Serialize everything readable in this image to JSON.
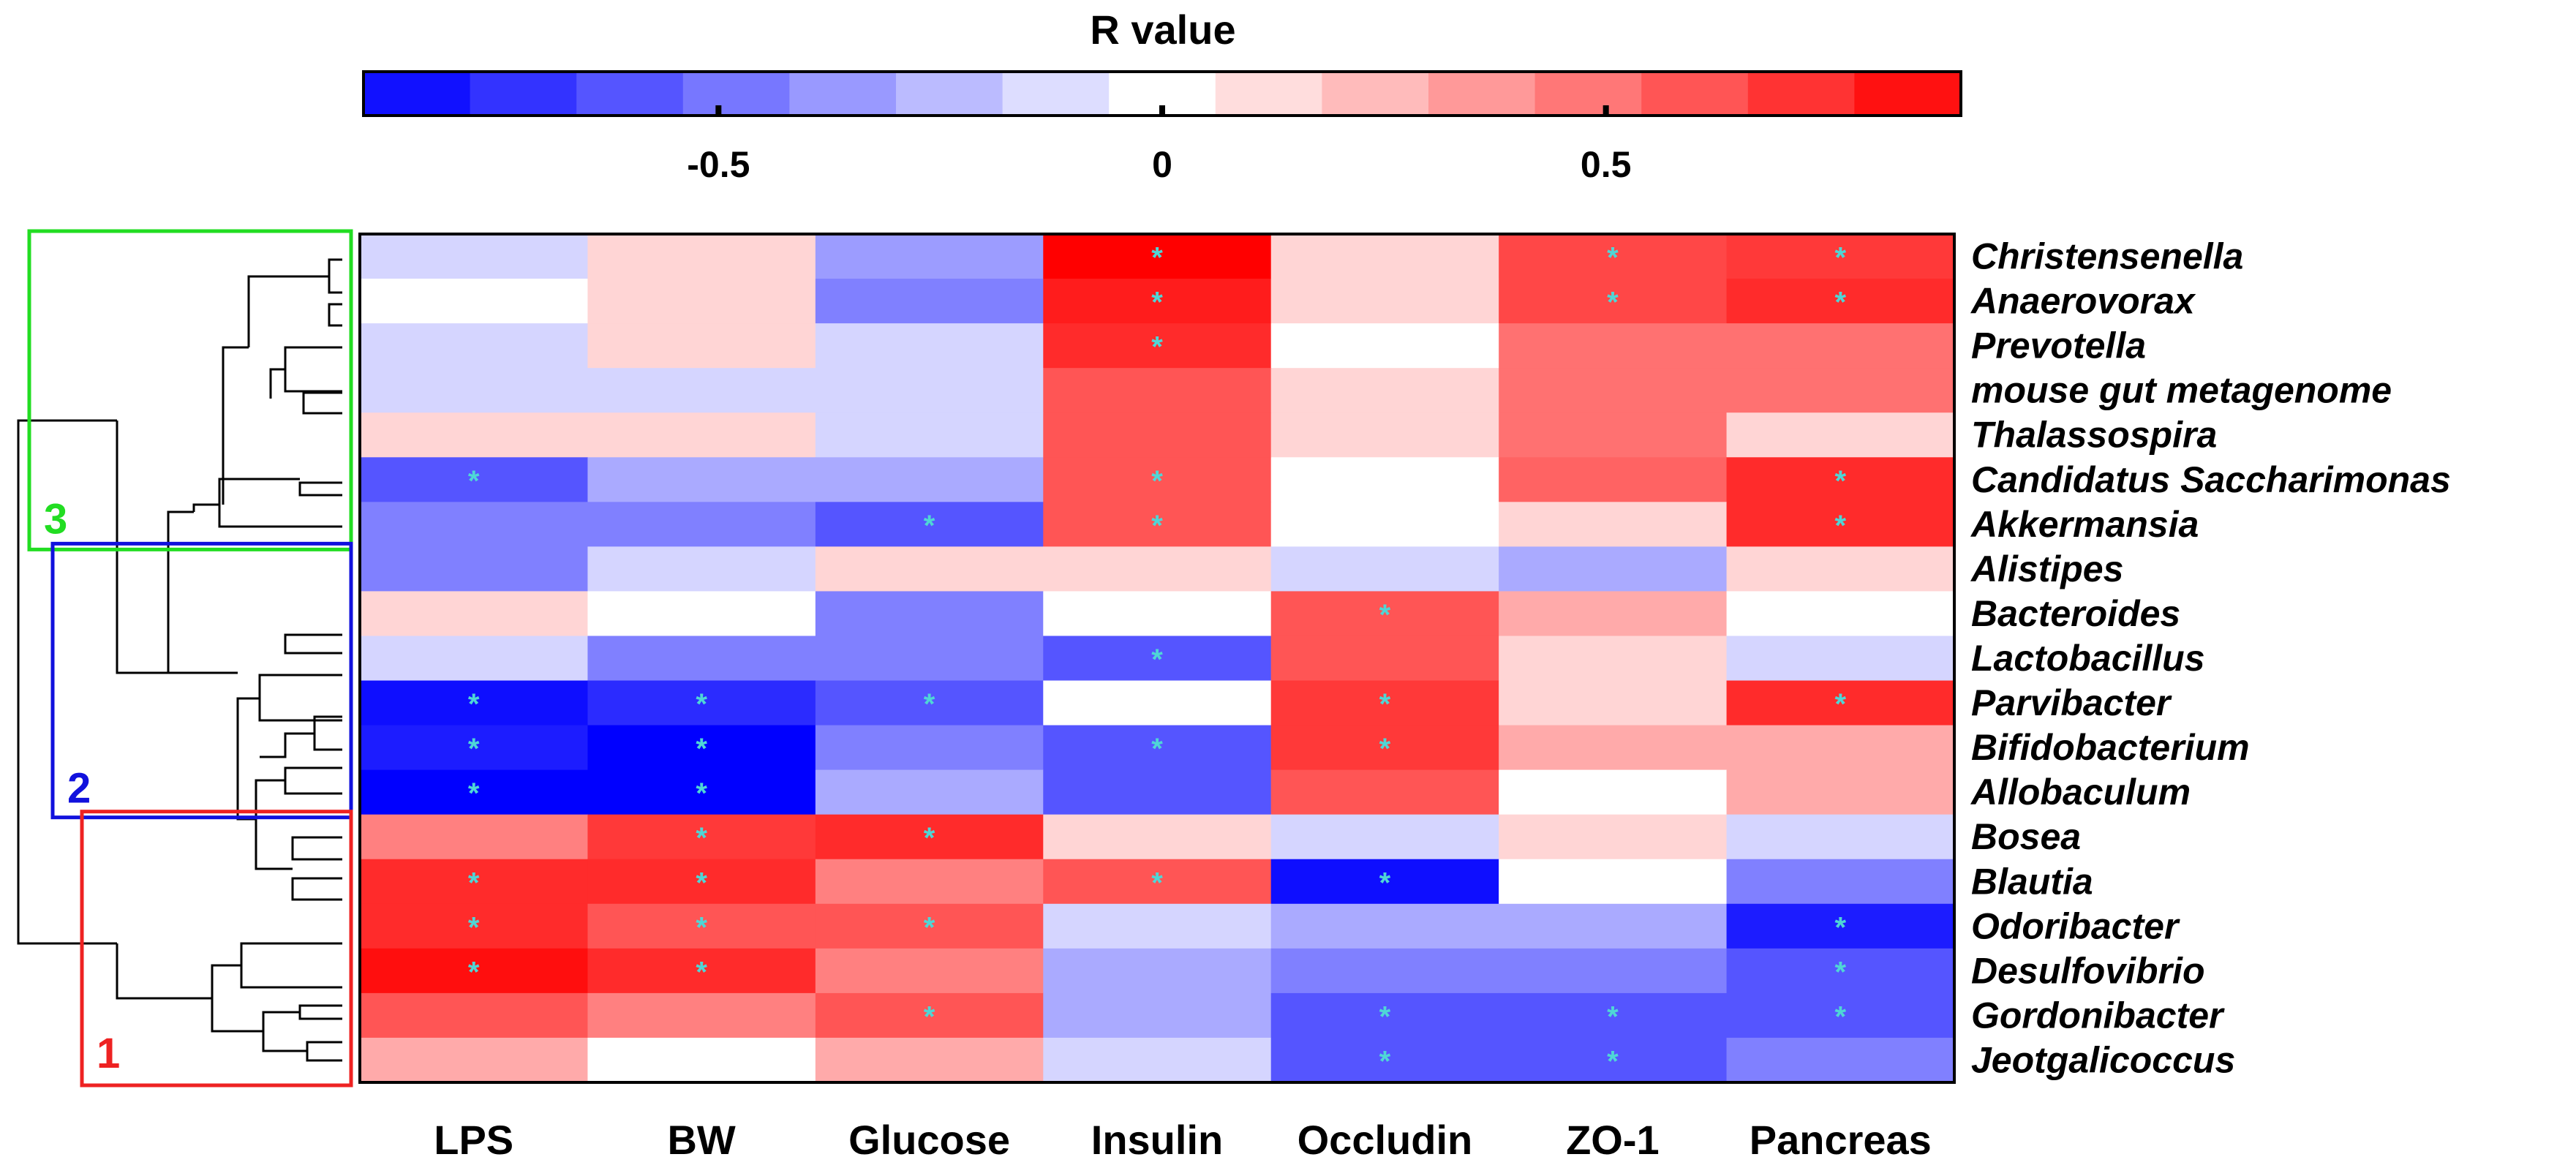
{
  "chart_data": {
    "type": "heatmap",
    "colorbar": {
      "title": "R value",
      "ticks": [
        {
          "value": -0.5,
          "label": "-0.5"
        },
        {
          "value": 0,
          "label": "0"
        },
        {
          "value": 0.5,
          "label": "0.5"
        }
      ],
      "range": [
        -0.9,
        0.9
      ],
      "colors": {
        "low": "#0000ff",
        "mid": "#ffffff",
        "high": "#ff0000"
      }
    },
    "columns": [
      "LPS",
      "BW",
      "Glucose",
      "Insulin",
      "Occludin",
      "ZO-1",
      "Pancreas"
    ],
    "rows": [
      "Christensenella",
      "Anaerovorax",
      "Prevotella",
      "mouse gut metagenome",
      "Thalassospira",
      "Candidatus Saccharimonas",
      "Akkermansia",
      "Alistipes",
      "Bacteroides",
      "Lactobacillus",
      "Parvibacter",
      "Bifidobacterium",
      "Allobaculum",
      "Bosea",
      "Blautia",
      "Odoribacter",
      "Desulfovibrio",
      "Gordonibacter",
      "Jeotgalicoccus"
    ],
    "values": [
      [
        -0.15,
        0.15,
        -0.35,
        0.9,
        0.15,
        0.65,
        0.7
      ],
      [
        0.0,
        0.15,
        -0.45,
        0.8,
        0.15,
        0.65,
        0.75
      ],
      [
        -0.15,
        0.15,
        -0.15,
        0.75,
        0.0,
        0.5,
        0.5
      ],
      [
        -0.15,
        -0.15,
        -0.15,
        0.6,
        0.15,
        0.5,
        0.5
      ],
      [
        0.15,
        0.15,
        -0.15,
        0.6,
        0.15,
        0.5,
        0.15
      ],
      [
        -0.6,
        -0.3,
        -0.3,
        0.6,
        0.0,
        0.55,
        0.75
      ],
      [
        -0.45,
        -0.45,
        -0.6,
        0.6,
        0.0,
        0.15,
        0.75
      ],
      [
        -0.45,
        -0.15,
        0.15,
        0.15,
        -0.15,
        -0.3,
        0.15
      ],
      [
        0.15,
        0.0,
        -0.45,
        0.0,
        0.6,
        0.3,
        0.0
      ],
      [
        -0.15,
        -0.45,
        -0.45,
        -0.6,
        0.6,
        0.15,
        -0.15
      ],
      [
        -0.85,
        -0.75,
        -0.6,
        0.0,
        0.7,
        0.15,
        0.75
      ],
      [
        -0.8,
        -0.9,
        -0.45,
        -0.6,
        0.7,
        0.3,
        0.3
      ],
      [
        -0.9,
        -0.9,
        -0.3,
        -0.6,
        0.6,
        0.0,
        0.3
      ],
      [
        0.45,
        0.7,
        0.75,
        0.15,
        -0.15,
        0.15,
        -0.15
      ],
      [
        0.75,
        0.75,
        0.45,
        0.6,
        -0.85,
        0.0,
        -0.45
      ],
      [
        0.75,
        0.6,
        0.6,
        -0.15,
        -0.3,
        -0.3,
        -0.8
      ],
      [
        0.85,
        0.75,
        0.45,
        -0.3,
        -0.45,
        -0.45,
        -0.6
      ],
      [
        0.6,
        0.45,
        0.6,
        -0.3,
        -0.6,
        -0.6,
        -0.6
      ],
      [
        0.3,
        0.0,
        0.3,
        -0.15,
        -0.6,
        -0.6,
        -0.45
      ]
    ],
    "significant": [
      [
        0,
        3
      ],
      [
        0,
        5
      ],
      [
        0,
        6
      ],
      [
        1,
        3
      ],
      [
        1,
        5
      ],
      [
        1,
        6
      ],
      [
        2,
        3
      ],
      [
        5,
        0
      ],
      [
        5,
        3
      ],
      [
        5,
        6
      ],
      [
        6,
        2
      ],
      [
        6,
        3
      ],
      [
        6,
        6
      ],
      [
        8,
        4
      ],
      [
        9,
        3
      ],
      [
        10,
        0
      ],
      [
        10,
        1
      ],
      [
        10,
        2
      ],
      [
        10,
        4
      ],
      [
        10,
        6
      ],
      [
        11,
        0
      ],
      [
        11,
        1
      ],
      [
        11,
        3
      ],
      [
        11,
        4
      ],
      [
        12,
        0
      ],
      [
        12,
        1
      ],
      [
        13,
        1
      ],
      [
        13,
        2
      ],
      [
        14,
        0
      ],
      [
        14,
        1
      ],
      [
        14,
        3
      ],
      [
        14,
        4
      ],
      [
        15,
        0
      ],
      [
        15,
        1
      ],
      [
        15,
        2
      ],
      [
        15,
        6
      ],
      [
        16,
        0
      ],
      [
        16,
        1
      ],
      [
        16,
        6
      ],
      [
        17,
        2
      ],
      [
        17,
        4
      ],
      [
        17,
        5
      ],
      [
        17,
        6
      ],
      [
        18,
        4
      ],
      [
        18,
        5
      ]
    ],
    "significance_marker": "*",
    "clusters": [
      {
        "label": "3",
        "rows": [
          0,
          6
        ],
        "color": "#22dd22"
      },
      {
        "label": "2",
        "rows": [
          7,
          12
        ],
        "color": "#1111dd"
      },
      {
        "label": "1",
        "rows": [
          13,
          18
        ],
        "color": "#ee2222"
      }
    ]
  }
}
